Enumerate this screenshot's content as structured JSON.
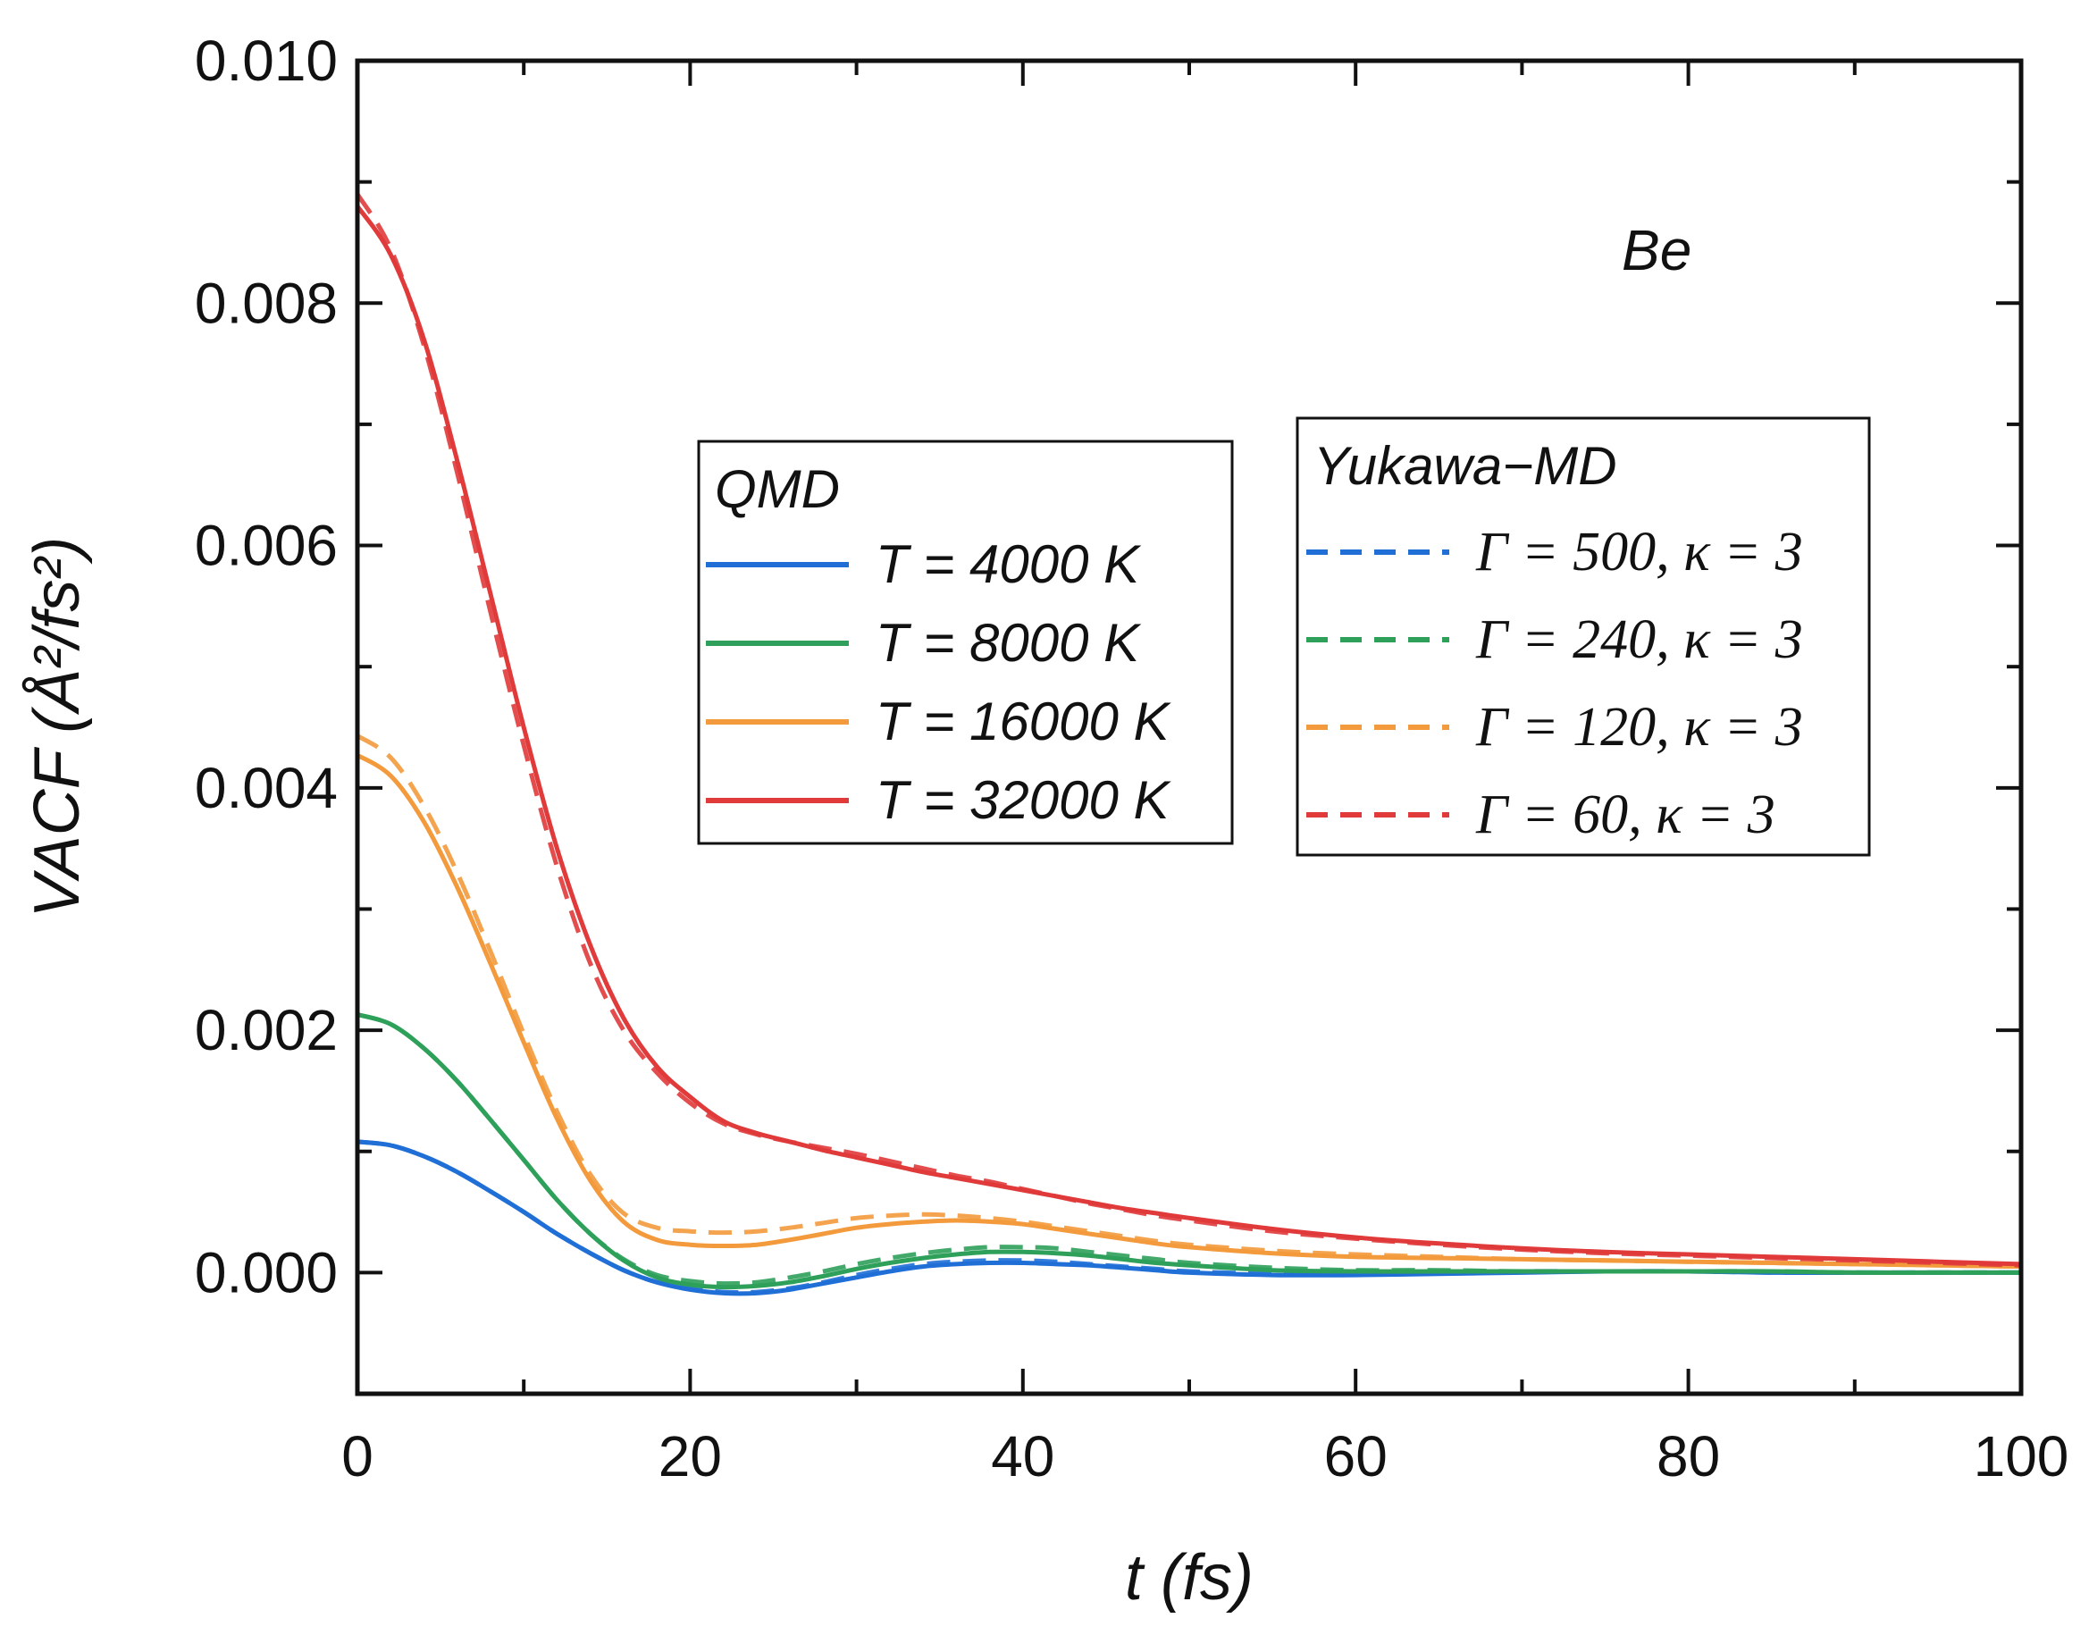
{
  "chart_data": {
    "type": "line",
    "title": "",
    "annotation": "Be",
    "xlabel": "t (fs)",
    "ylabel": "VACF (Å²/fs²)",
    "xlim": [
      0,
      100
    ],
    "ylim": [
      -0.001,
      0.01
    ],
    "x_ticks": [
      0,
      20,
      40,
      60,
      80,
      100
    ],
    "x_tick_labels": [
      "0",
      "20",
      "40",
      "60",
      "80",
      "100"
    ],
    "y_ticks": [
      0.0,
      0.002,
      0.004,
      0.006,
      0.008,
      0.01
    ],
    "y_tick_labels": [
      "0.000",
      "0.002",
      "0.004",
      "0.006",
      "0.008",
      "0.010"
    ],
    "legends": [
      {
        "title": "QMD",
        "style": "solid",
        "entries": [
          {
            "label": "T = 4000 K",
            "color": "#1f6fd6"
          },
          {
            "label": "T = 8000 K",
            "color": "#2ea05a"
          },
          {
            "label": "T = 16000 K",
            "color": "#f39a3c"
          },
          {
            "label": "T = 32000 K",
            "color": "#e03a3a"
          }
        ]
      },
      {
        "title": "Yukawa−MD",
        "style": "dashed",
        "entries": [
          {
            "label": "Γ = 500, κ = 3",
            "color": "#1f6fd6"
          },
          {
            "label": "Γ = 240, κ = 3",
            "color": "#2ea05a"
          },
          {
            "label": "Γ = 120, κ = 3",
            "color": "#f39a3c"
          },
          {
            "label": "Γ = 60, κ = 3",
            "color": "#e03a3a"
          }
        ]
      }
    ],
    "x": [
      0,
      2,
      4,
      6,
      8,
      10,
      12,
      14,
      16,
      18,
      20,
      22,
      24,
      26,
      28,
      30,
      32,
      34,
      36,
      38,
      40,
      42,
      44,
      46,
      48,
      50,
      55,
      60,
      65,
      70,
      75,
      80,
      85,
      90,
      95,
      100
    ],
    "series": [
      {
        "name": "T = 4000 K",
        "group": "QMD",
        "style": "solid",
        "color": "#1f6fd6",
        "values": [
          0.00108,
          0.00105,
          0.00096,
          0.00083,
          0.00067,
          0.0005,
          0.00032,
          0.00016,
          2e-05,
          -8e-05,
          -0.00014,
          -0.00017,
          -0.00017,
          -0.00014,
          -9e-05,
          -4e-05,
          1e-05,
          5e-05,
          7e-05,
          8e-05,
          8e-05,
          7e-05,
          6e-05,
          4e-05,
          2e-05,
          0.0,
          -2e-05,
          -2e-05,
          -1e-05,
          0.0,
          1e-05,
          1e-05,
          0.0,
          0.0,
          0.0,
          0.0
        ]
      },
      {
        "name": "Γ = 500, κ = 3",
        "group": "Yukawa-MD",
        "style": "dashed",
        "color": "#1f6fd6",
        "values": [
          0.00108,
          0.00105,
          0.00096,
          0.00083,
          0.00067,
          0.0005,
          0.00032,
          0.00016,
          2e-05,
          -8e-05,
          -0.00013,
          -0.00016,
          -0.00016,
          -0.00013,
          -8e-05,
          -2e-05,
          3e-05,
          7e-05,
          9e-05,
          0.0001,
          0.0001,
          9e-05,
          7e-05,
          5e-05,
          3e-05,
          1e-05,
          -1e-05,
          -1e-05,
          0.0,
          1e-05,
          1e-05,
          1e-05,
          0.0,
          0.0,
          0.0,
          0.0
        ]
      },
      {
        "name": "T = 8000 K",
        "group": "QMD",
        "style": "solid",
        "color": "#2ea05a",
        "values": [
          0.00213,
          0.00205,
          0.00185,
          0.00158,
          0.00126,
          0.00093,
          0.0006,
          0.00032,
          0.0001,
          -4e-05,
          -0.0001,
          -0.00012,
          -0.00011,
          -8e-05,
          -3e-05,
          3e-05,
          8e-05,
          0.00012,
          0.00015,
          0.00017,
          0.00017,
          0.00016,
          0.00014,
          0.00011,
          8e-05,
          6e-05,
          2e-05,
          1e-05,
          1e-05,
          1e-05,
          1e-05,
          1e-05,
          1e-05,
          0.0,
          0.0,
          0.0
        ]
      },
      {
        "name": "Γ = 240, κ = 3",
        "group": "Yukawa-MD",
        "style": "dashed",
        "color": "#2ea05a",
        "values": [
          0.00213,
          0.00205,
          0.00185,
          0.00158,
          0.00126,
          0.00093,
          0.0006,
          0.00032,
          0.00011,
          -2e-05,
          -7e-05,
          -9e-05,
          -8e-05,
          -4e-05,
          1e-05,
          7e-05,
          0.00012,
          0.00016,
          0.00019,
          0.00021,
          0.00021,
          0.0002,
          0.00017,
          0.00014,
          0.00011,
          8e-05,
          4e-05,
          2e-05,
          2e-05,
          1e-05,
          1e-05,
          1e-05,
          1e-05,
          0.0,
          0.0,
          0.0
        ]
      },
      {
        "name": "T = 16000 K",
        "group": "QMD",
        "style": "solid",
        "color": "#f39a3c",
        "values": [
          0.00427,
          0.0041,
          0.00372,
          0.00318,
          0.00255,
          0.0019,
          0.00127,
          0.00076,
          0.00042,
          0.00027,
          0.00023,
          0.00022,
          0.00023,
          0.00027,
          0.00032,
          0.00037,
          0.0004,
          0.00042,
          0.00043,
          0.00042,
          0.0004,
          0.00036,
          0.00032,
          0.00028,
          0.00024,
          0.00021,
          0.00016,
          0.00013,
          0.00012,
          0.00011,
          0.0001,
          9e-05,
          8e-05,
          7e-05,
          6e-05,
          5e-05
        ]
      },
      {
        "name": "Γ = 120, κ = 3",
        "group": "Yukawa-MD",
        "style": "dashed",
        "color": "#f39a3c",
        "values": [
          0.00443,
          0.00425,
          0.00385,
          0.0033,
          0.00265,
          0.00197,
          0.00133,
          0.00081,
          0.00049,
          0.00037,
          0.00034,
          0.00033,
          0.00034,
          0.00037,
          0.00041,
          0.00045,
          0.00047,
          0.00048,
          0.00047,
          0.00045,
          0.00042,
          0.00038,
          0.00034,
          0.0003,
          0.00026,
          0.00023,
          0.00018,
          0.00015,
          0.00013,
          0.00011,
          0.0001,
          9e-05,
          8e-05,
          7e-05,
          6e-05,
          5e-05
        ]
      },
      {
        "name": "T = 32000 K",
        "group": "QMD",
        "style": "solid",
        "color": "#e03a3a",
        "values": [
          0.0088,
          0.0084,
          0.0077,
          0.0067,
          0.0056,
          0.0045,
          0.0035,
          0.0027,
          0.0021,
          0.0017,
          0.00145,
          0.00125,
          0.00115,
          0.00108,
          0.00101,
          0.00095,
          0.00089,
          0.00083,
          0.00078,
          0.00073,
          0.00068,
          0.00063,
          0.00058,
          0.00053,
          0.00049,
          0.00045,
          0.00036,
          0.00029,
          0.00024,
          0.0002,
          0.00017,
          0.00015,
          0.00013,
          0.00011,
          9e-05,
          7e-05
        ]
      },
      {
        "name": "Γ = 60, κ = 3",
        "group": "Yukawa-MD",
        "style": "dashed",
        "color": "#e03a3a",
        "values": [
          0.0089,
          0.00845,
          0.00765,
          0.0066,
          0.00545,
          0.00435,
          0.00335,
          0.00255,
          0.002,
          0.00165,
          0.0014,
          0.00123,
          0.00114,
          0.00108,
          0.00103,
          0.00098,
          0.00092,
          0.00086,
          0.0008,
          0.00075,
          0.00069,
          0.00063,
          0.00057,
          0.00052,
          0.00047,
          0.00043,
          0.00034,
          0.00028,
          0.00023,
          0.00019,
          0.00016,
          0.00014,
          0.00012,
          0.0001,
          8e-05,
          6e-05
        ]
      }
    ]
  }
}
